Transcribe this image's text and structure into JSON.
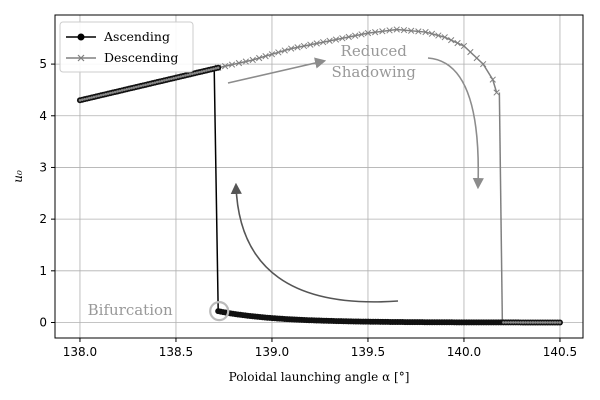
{
  "chart_data": {
    "type": "line",
    "title": "",
    "xlabel": "Poloidal launching angle α [°]",
    "ylabel": "u₀",
    "xlim": [
      137.87,
      140.62
    ],
    "ylim": [
      -0.3,
      5.95
    ],
    "xticks": [
      138.0,
      138.5,
      139.0,
      139.5,
      140.0,
      140.5
    ],
    "xtick_labels": [
      "138.0",
      "138.5",
      "139.0",
      "139.5",
      "140.0",
      "140.5"
    ],
    "yticks": [
      0,
      1,
      2,
      3,
      4,
      5
    ],
    "ytick_labels": [
      "0",
      "1",
      "2",
      "3",
      "4",
      "5"
    ],
    "grid": true,
    "legend_position": "top-left",
    "series": [
      {
        "name": "Ascending",
        "marker": "circle",
        "color": "#000000",
        "segments": [
          {
            "x_start": 138.0,
            "x_end": 138.72,
            "y_start": 4.3,
            "y_end": 4.93
          },
          {
            "x_start": 138.72,
            "x_end": 140.5,
            "y_start": 0.22,
            "y_end": 0.0
          }
        ],
        "jump": {
          "x": 138.72,
          "y_from": 4.93,
          "y_to": 0.22
        }
      },
      {
        "name": "Descending",
        "marker": "x",
        "color": "#808080",
        "upper_points": [
          [
            138.0,
            4.3
          ],
          [
            138.72,
            4.93
          ],
          [
            138.9,
            5.08
          ],
          [
            139.1,
            5.3
          ],
          [
            139.3,
            5.45
          ],
          [
            139.5,
            5.6
          ],
          [
            139.65,
            5.67
          ],
          [
            139.8,
            5.62
          ],
          [
            139.9,
            5.52
          ],
          [
            140.0,
            5.35
          ],
          [
            140.1,
            5.0
          ],
          [
            140.15,
            4.7
          ],
          [
            140.17,
            4.45
          ]
        ],
        "lower": {
          "x_start": 140.2,
          "x_end": 140.5,
          "y": 0.0
        },
        "jump": {
          "x": 140.2,
          "y_from": 4.45,
          "y_to": 0.0
        }
      }
    ],
    "annotations": [
      {
        "text": "Bifurcation",
        "x": 138.04,
        "y": 0.24
      },
      {
        "text": "Reduced",
        "x": 139.53,
        "y": 5.25
      },
      {
        "text": "Shadowing",
        "x": 139.53,
        "y": 4.85
      }
    ]
  },
  "colors": {
    "ascending": "#000000",
    "descending": "#808080",
    "grid": "#b0b0b0",
    "annotation": "#999999",
    "arrow_dark": "#555555",
    "arrow_light": "#8c8c8c"
  }
}
